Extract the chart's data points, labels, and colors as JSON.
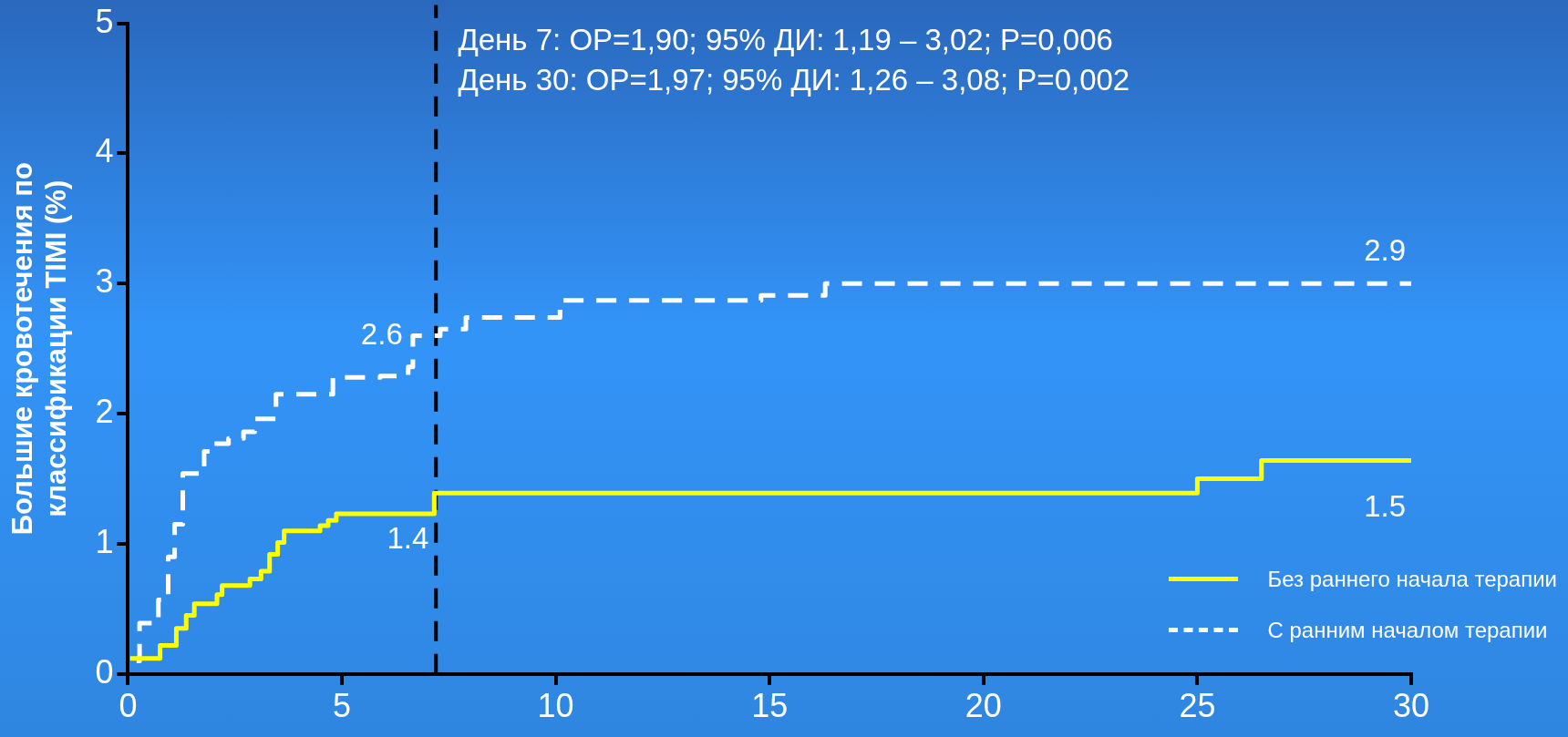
{
  "chart_data": {
    "type": "step",
    "xlim": [
      0,
      30
    ],
    "xticks": [
      0,
      5,
      10,
      15,
      20,
      25,
      30
    ],
    "ylim": [
      0,
      5
    ],
    "yticks": [
      0,
      1,
      2,
      3,
      4,
      5
    ],
    "ylabel": "Большие кровотечения по классификации TIMI (%)",
    "grid": false,
    "marker": "none",
    "legend": "bottom right",
    "series": [
      {
        "name": "Без раннего начала терапии",
        "color": "#ffff00",
        "line_style": "solid",
        "x": [
          0.05,
          0.75,
          1.13,
          1.36,
          1.55,
          2.08,
          2.2,
          2.85,
          3.11,
          3.31,
          3.5,
          3.65,
          4.49,
          4.68,
          4.87,
          7.16,
          25,
          26.5,
          30
        ],
        "values": [
          0.12,
          0.22,
          0.35,
          0.45,
          0.54,
          0.61,
          0.68,
          0.73,
          0.79,
          0.92,
          1.01,
          1.1,
          1.14,
          1.18,
          1.23,
          1.39,
          1.5,
          1.64,
          1.64
        ]
      },
      {
        "name": "С ранним началом терапии",
        "color": "#ffffff",
        "line_style": "dashed",
        "x": [
          0.2,
          0.27,
          0.71,
          0.94,
          1.09,
          1.28,
          1.78,
          2.0,
          2.35,
          2.7,
          2.96,
          3.46,
          4.79,
          5.9,
          6.55,
          6.66,
          7.3,
          7.9,
          10.1,
          14.8,
          16.3,
          30
        ],
        "values": [
          0.1,
          0.39,
          0.57,
          0.9,
          1.15,
          1.54,
          1.71,
          1.77,
          1.81,
          1.86,
          1.96,
          2.15,
          2.28,
          2.29,
          2.36,
          2.6,
          2.65,
          2.74,
          2.87,
          2.91,
          3.0,
          3.0
        ]
      }
    ],
    "ref_lines": [
      {
        "axis": "x",
        "value": 7.2,
        "color": "#000000",
        "line_style": "dashed"
      }
    ],
    "annotations": [
      "День 7: ОР=1,90; 95% ДИ: 1,19 – 3,02; P=0,006",
      "День 30: ОР=1,97; 95% ДИ: 1,26 – 3,08; P=0,002",
      {
        "text": "2.6",
        "x": 6.55,
        "y": 2.36
      },
      {
        "text": "1.4",
        "x": 7.16,
        "y": 1.39
      },
      {
        "text": "2.9",
        "x": 30,
        "y": 3.0
      },
      {
        "text": "1.5",
        "x": 30,
        "y": 1.64
      }
    ]
  }
}
